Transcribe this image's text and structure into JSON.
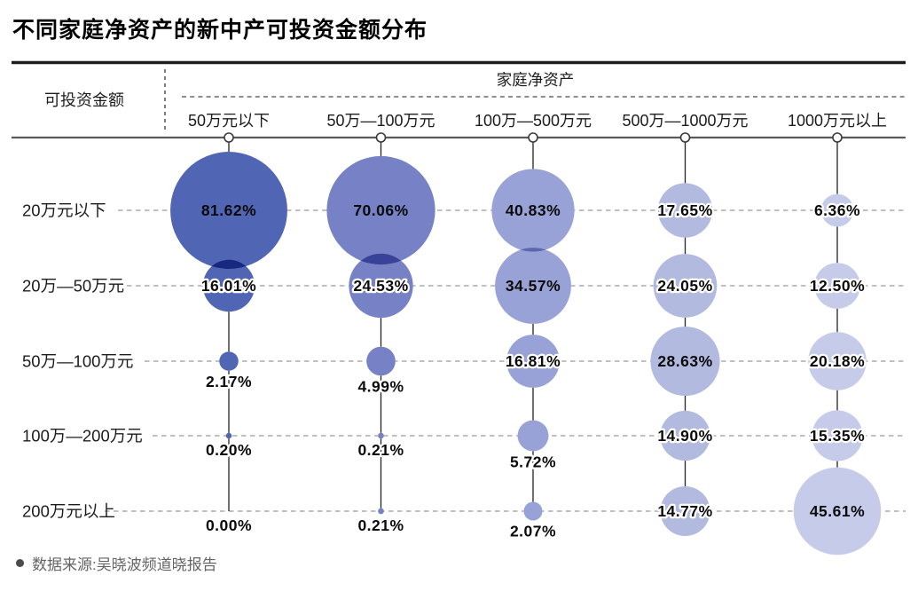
{
  "title": "不同家庭净资产的新中产可投资金额分布",
  "source_note": "数据来源:吴晓波频道晓报告",
  "chart_data": {
    "type": "bubble",
    "title": "不同家庭净资产的新中产可投资金额分布",
    "column_group_label": "家庭净资产",
    "row_group_label": "可投资金额",
    "columns": [
      "50万元以下",
      "50万—100万元",
      "100万—500万元",
      "500万—1000万元",
      "1000万元以上"
    ],
    "rows": [
      "20万元以下",
      "20万—50万元",
      "50万—100万元",
      "100万—200万元",
      "200万元以上"
    ],
    "unit": "%",
    "values": [
      [
        81.62,
        70.06,
        40.83,
        17.65,
        6.36
      ],
      [
        16.01,
        24.53,
        34.57,
        24.05,
        12.5
      ],
      [
        2.17,
        4.99,
        16.81,
        28.63,
        20.18
      ],
      [
        0.2,
        0.21,
        5.72,
        14.9,
        15.35
      ],
      [
        0.0,
        0.21,
        2.07,
        14.77,
        45.61
      ]
    ],
    "label_position": [
      [
        "center",
        "center",
        "center",
        "center",
        "center"
      ],
      [
        "center",
        "center",
        "center",
        "center",
        "center"
      ],
      [
        "below",
        "below",
        "center",
        "center",
        "center"
      ],
      [
        "below",
        "below",
        "below",
        "center",
        "center"
      ],
      [
        "below",
        "below",
        "below",
        "center",
        "center"
      ]
    ],
    "column_colors": [
      "#5065b4",
      "#7682c5",
      "#99a2d6",
      "#b3badf",
      "#c6cbe9"
    ],
    "bubble_scale": "area proportional to value",
    "overlap_blend": "multiply",
    "grid": "dashed row guides",
    "legend": "none"
  }
}
